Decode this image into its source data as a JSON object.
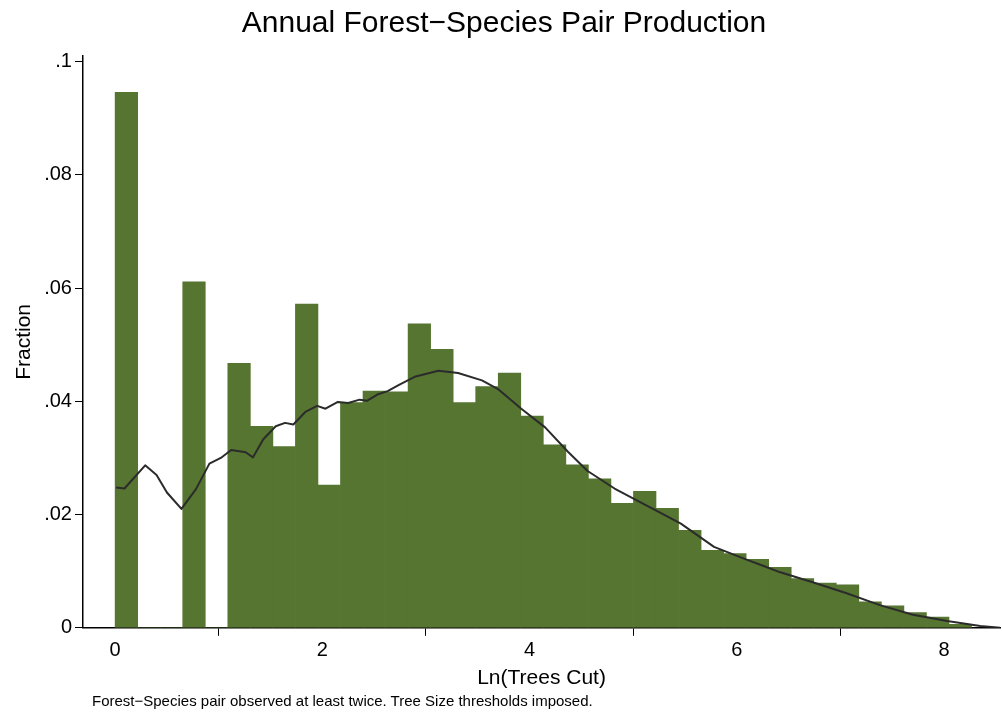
{
  "chart_data": {
    "type": "histogram",
    "title": "Annual Forest−Species Pair Production",
    "xlabel": "Ln(Trees Cut)",
    "ylabel": "Fraction",
    "annotations": [
      "Forest−Species pair observed at least twice. Tree Size thresholds imposed."
    ],
    "bins": [
      0,
      0.2175,
      0.435,
      0.6525,
      0.87,
      1.0875,
      1.305,
      1.5225,
      1.74,
      1.9575,
      2.175,
      2.3925,
      2.61,
      2.8275,
      3.045,
      3.2625,
      3.48,
      3.6975,
      3.915,
      4.1325,
      4.35,
      4.5675,
      4.785,
      5.0025,
      5.22,
      5.4375,
      5.655,
      5.8725,
      6.09,
      6.3075,
      6.525,
      6.7425,
      6.96,
      7.1775,
      7.395,
      7.6125,
      7.83,
      8.0475,
      8.265,
      8.4825
    ],
    "series": [
      {
        "type": "histogram",
        "color": "#557530",
        "values": [
          0.0946,
          0,
          0,
          0.0611,
          0,
          0.0467,
          0.0356,
          0.032,
          0.0572,
          0.0252,
          0.0398,
          0.0418,
          0.0417,
          0.0537,
          0.0492,
          0.0398,
          0.0426,
          0.045,
          0.0374,
          0.0323,
          0.0288,
          0.0263,
          0.022,
          0.0241,
          0.0211,
          0.0172,
          0.0137,
          0.0131,
          0.0121,
          0.0107,
          0.0087,
          0.0079,
          0.0076,
          0.0046,
          0.0039,
          0.0027,
          0.0019,
          0.0006,
          null
        ]
      },
      {
        "type": "line",
        "color": "#2b2b2b",
        "x": [
          0.01,
          0.09,
          0.29,
          0.4,
          0.5,
          0.64,
          0.78,
          0.91,
          1.02,
          1.12,
          1.26,
          1.33,
          1.43,
          1.55,
          1.64,
          1.72,
          1.84,
          1.95,
          2.03,
          2.15,
          2.25,
          2.36,
          2.43,
          2.53,
          2.63,
          2.74,
          2.9,
          3.12,
          3.31,
          3.54,
          3.7,
          3.92,
          4.15,
          4.37,
          4.56,
          4.82,
          5.14,
          5.46,
          5.78,
          6.1,
          6.42,
          6.74,
          7.06,
          7.38,
          7.7,
          8.03,
          8.35,
          8.54
        ],
        "values": [
          0.0248,
          0.0246,
          0.0287,
          0.027,
          0.0239,
          0.021,
          0.0245,
          0.029,
          0.03,
          0.0314,
          0.031,
          0.0301,
          0.0333,
          0.0356,
          0.0362,
          0.0359,
          0.0382,
          0.0392,
          0.0387,
          0.0399,
          0.0397,
          0.0403,
          0.0401,
          0.0412,
          0.0418,
          0.0429,
          0.0444,
          0.0454,
          0.045,
          0.0437,
          0.0421,
          0.0387,
          0.0354,
          0.0311,
          0.0277,
          0.0246,
          0.0215,
          0.0184,
          0.0143,
          0.012,
          0.0098,
          0.008,
          0.0061,
          0.004,
          0.0023,
          0.0012,
          0.0003,
          0
        ]
      }
    ],
    "xlim": [
      -0.31,
      8.54
    ],
    "ylim": [
      0,
      0.101
    ],
    "xticks": [
      0,
      2,
      4,
      6,
      8
    ],
    "yticks": [
      0,
      {
        "value": 0.02,
        "label": ".02"
      },
      {
        "value": 0.04,
        "label": ".04"
      },
      {
        "value": 0.06,
        "label": ".06"
      },
      {
        "value": 0.08,
        "label": ".08"
      },
      {
        "value": 0.1,
        "label": ".1"
      }
    ],
    "grid": false,
    "legend": false
  }
}
